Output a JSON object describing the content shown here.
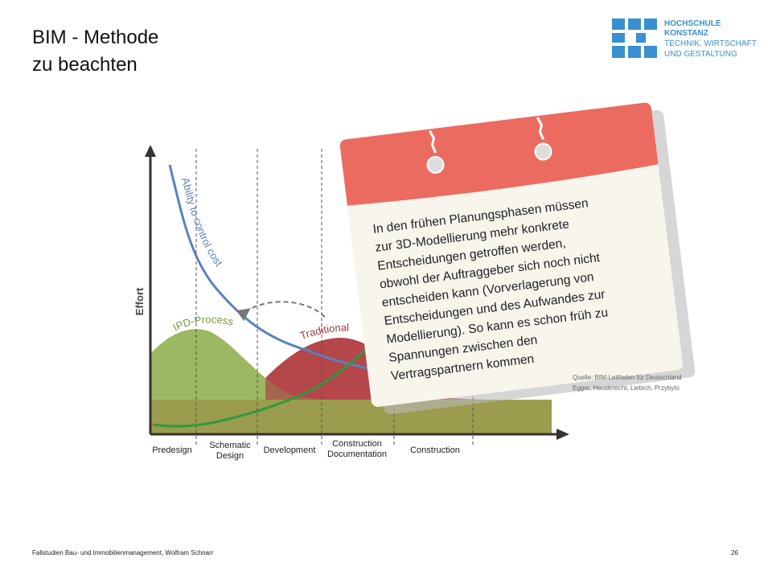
{
  "header": {
    "title": [
      "BIM - Methode",
      "zu beachten"
    ],
    "logo": [
      "HOCHSCHULE",
      "KONSTANZ",
      "TECHNIK, WIRTSCHAFT",
      "UND GESTALTUNG"
    ]
  },
  "diagram": {
    "y_label": "Effort",
    "curves": [
      "Ability to control cost",
      "IPD-Process",
      "Traditional"
    ],
    "phases": [
      "Predesign",
      "Schematic Design",
      "Development",
      "Construction Documentation",
      "Construction"
    ]
  },
  "note": {
    "lines": [
      "In den frühen Planungsphasen müssen",
      "zur 3D-Modellierung mehr konkrete",
      "Entscheidungen getroffen werden,",
      "obwohl der Auftraggeber sich noch nicht",
      "entscheiden kann (Vorverlagerung von",
      "Entscheidungen und des Aufwandes zur",
      "Modellierung). So kann es schon früh zu",
      "Spannungen zwischen den",
      "Vertragspartnern kommen"
    ]
  },
  "source": [
    "Quelle: BIM-Leitfaden für Deutschland",
    "Egger, Hausknecht, Liebich, Przybylo"
  ],
  "footer": {
    "text": "Fallstudien Bau- und Immobilienmanagement, Wolfram Schnarr",
    "page": "26"
  }
}
